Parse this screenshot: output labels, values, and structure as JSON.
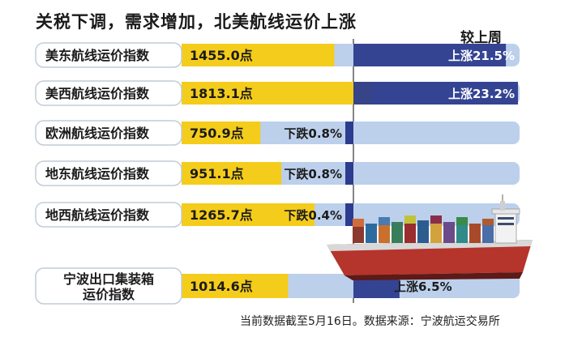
{
  "title": "关税下调，需求增加，北美航线运价上涨",
  "compare_header": "较上周",
  "footnote": "当前数据截至5月16日。数据来源：宁波航运交易所",
  "colors": {
    "label_bg": "#ffffff",
    "bar_track": "#bcd0ec",
    "index_fill": "#f4cc1b",
    "change_fill": "#2c3c8e",
    "label_border": "#c2ccd8"
  },
  "chart_data": {
    "type": "bar",
    "title": "关税下调，需求增加，北美航线运价上涨",
    "categories": [
      "美东航线运价指数",
      "美西航线运价指数",
      "欧洲航线运价指数",
      "地东航线运价指数",
      "地西航线运价指数",
      "宁波出口集装箱运价指数"
    ],
    "values": [
      1455.0,
      1813.1,
      750.9,
      951.1,
      1265.7,
      1014.6
    ],
    "value_labels": [
      "1455.0点",
      "1813.1点",
      "750.9点",
      "951.1点",
      "1265.7点",
      "1014.6点"
    ],
    "change_pct": [
      21.5,
      23.2,
      -0.8,
      -0.8,
      -0.4,
      6.5
    ],
    "change_labels": [
      "上涨21.5%",
      "上涨23.2%",
      "下跌0.8%",
      "下跌0.8%",
      "下跌0.4%",
      "上涨6.5%"
    ],
    "change_header": "较上周",
    "index_max": 2000,
    "change_max_pct": 23.2
  }
}
